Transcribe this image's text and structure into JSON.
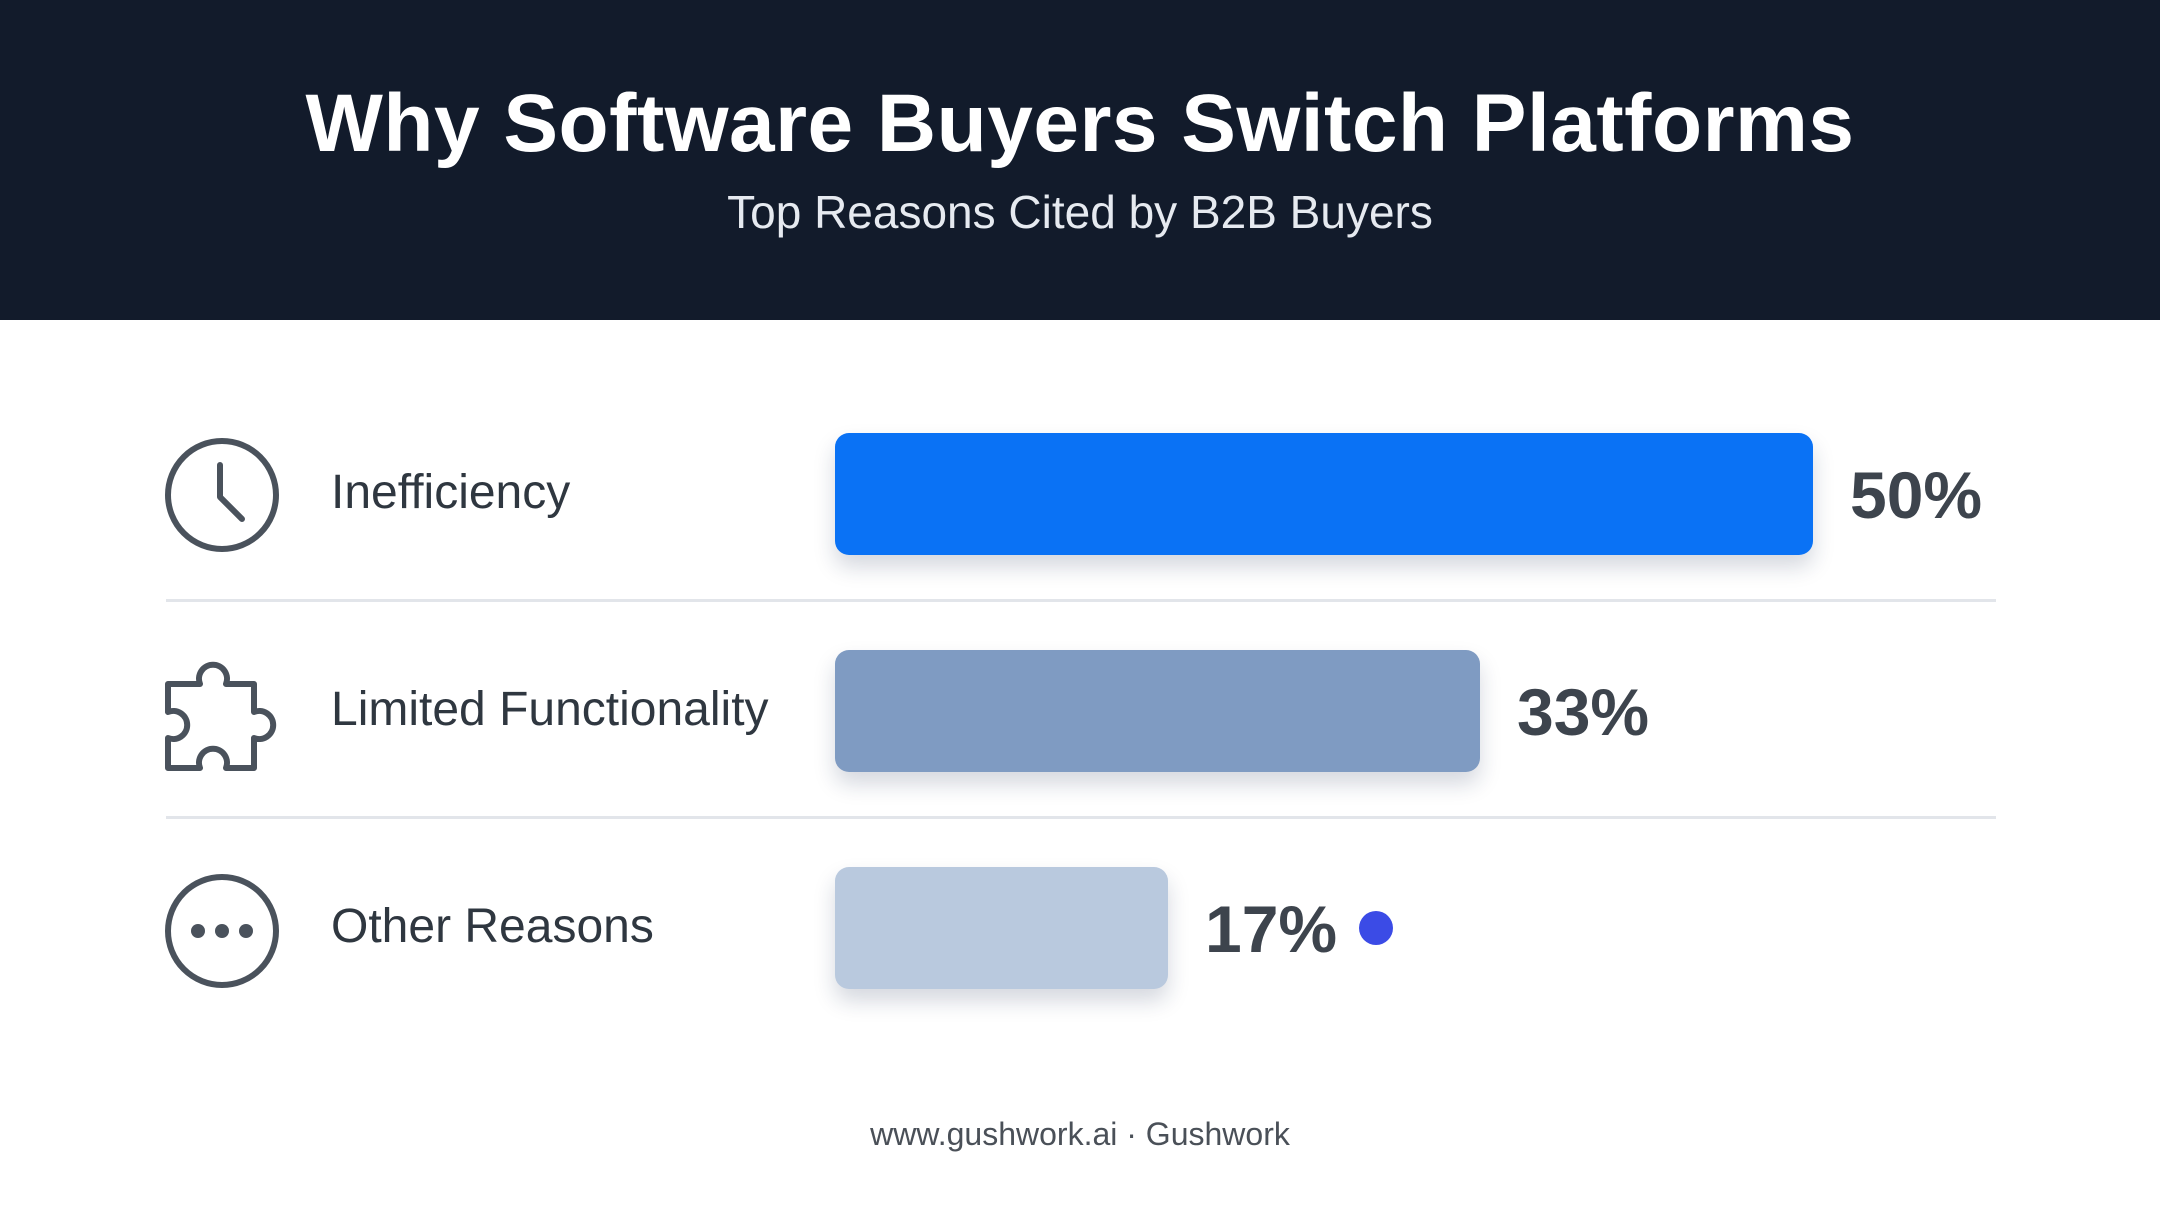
{
  "header": {
    "title": "Why Software Buyers Switch Platforms",
    "subtitle": "Top Reasons Cited by B2B Buyers"
  },
  "chart_data": {
    "type": "bar",
    "orientation": "horizontal",
    "title": "Why Software Buyers Switch Platforms",
    "subtitle": "Top Reasons Cited by B2B Buyers",
    "categories": [
      "Inefficiency",
      "Limited Functionality",
      "Other Reasons"
    ],
    "values": [
      50,
      33,
      17
    ],
    "value_labels": [
      "50%",
      "33%",
      "17%"
    ],
    "icons": [
      "clock-icon",
      "puzzle-icon",
      "more-dots-icon"
    ],
    "colors": [
      "#0a72f5",
      "#7f9bc2",
      "#b9c9de"
    ],
    "xlim": [
      0,
      50
    ],
    "grid": false,
    "legend": "none"
  },
  "footer": {
    "text": "www.gushwork.ai · Gushwork"
  },
  "accent_dot_color": "#3b4be6"
}
